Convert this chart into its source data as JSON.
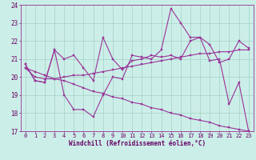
{
  "title": "",
  "xlabel": "Windchill (Refroidissement éolien,°C)",
  "background_color": "#cceee8",
  "line_color": "#993399",
  "grid_color": "#99ccbb",
  "xlim": [
    -0.5,
    23.5
  ],
  "ylim": [
    17,
    24
  ],
  "yticks": [
    17,
    18,
    19,
    20,
    21,
    22,
    23,
    24
  ],
  "xticks": [
    0,
    1,
    2,
    3,
    4,
    5,
    6,
    7,
    8,
    9,
    10,
    11,
    12,
    13,
    14,
    15,
    16,
    17,
    18,
    19,
    20,
    21,
    22,
    23
  ],
  "curves": [
    [
      20.7,
      19.8,
      19.7,
      21.5,
      19.0,
      18.2,
      18.2,
      17.8,
      19.0,
      20.0,
      19.9,
      21.2,
      21.1,
      21.0,
      21.5,
      23.8,
      23.0,
      22.2,
      22.2,
      20.9,
      21.0,
      18.5,
      19.7,
      17.0
    ],
    [
      20.7,
      19.8,
      19.7,
      21.5,
      21.0,
      21.2,
      20.5,
      19.8,
      22.2,
      21.0,
      20.4,
      20.9,
      21.0,
      21.2,
      21.1,
      21.2,
      21.0,
      22.0,
      22.2,
      21.8,
      20.8,
      21.0,
      22.0,
      21.6
    ],
    [
      20.5,
      20.0,
      19.9,
      19.9,
      20.0,
      20.1,
      20.1,
      20.2,
      20.3,
      20.4,
      20.5,
      20.6,
      20.7,
      20.8,
      20.9,
      21.0,
      21.1,
      21.2,
      21.3,
      21.3,
      21.4,
      21.4,
      21.5,
      21.5
    ],
    [
      20.5,
      20.3,
      20.1,
      19.9,
      19.8,
      19.6,
      19.4,
      19.2,
      19.1,
      18.9,
      18.8,
      18.6,
      18.5,
      18.3,
      18.2,
      18.0,
      17.9,
      17.7,
      17.6,
      17.5,
      17.3,
      17.2,
      17.1,
      17.0
    ]
  ],
  "tick_fontsize": 5.0,
  "xlabel_fontsize": 5.5,
  "marker_size": 2.0,
  "line_width": 0.8
}
